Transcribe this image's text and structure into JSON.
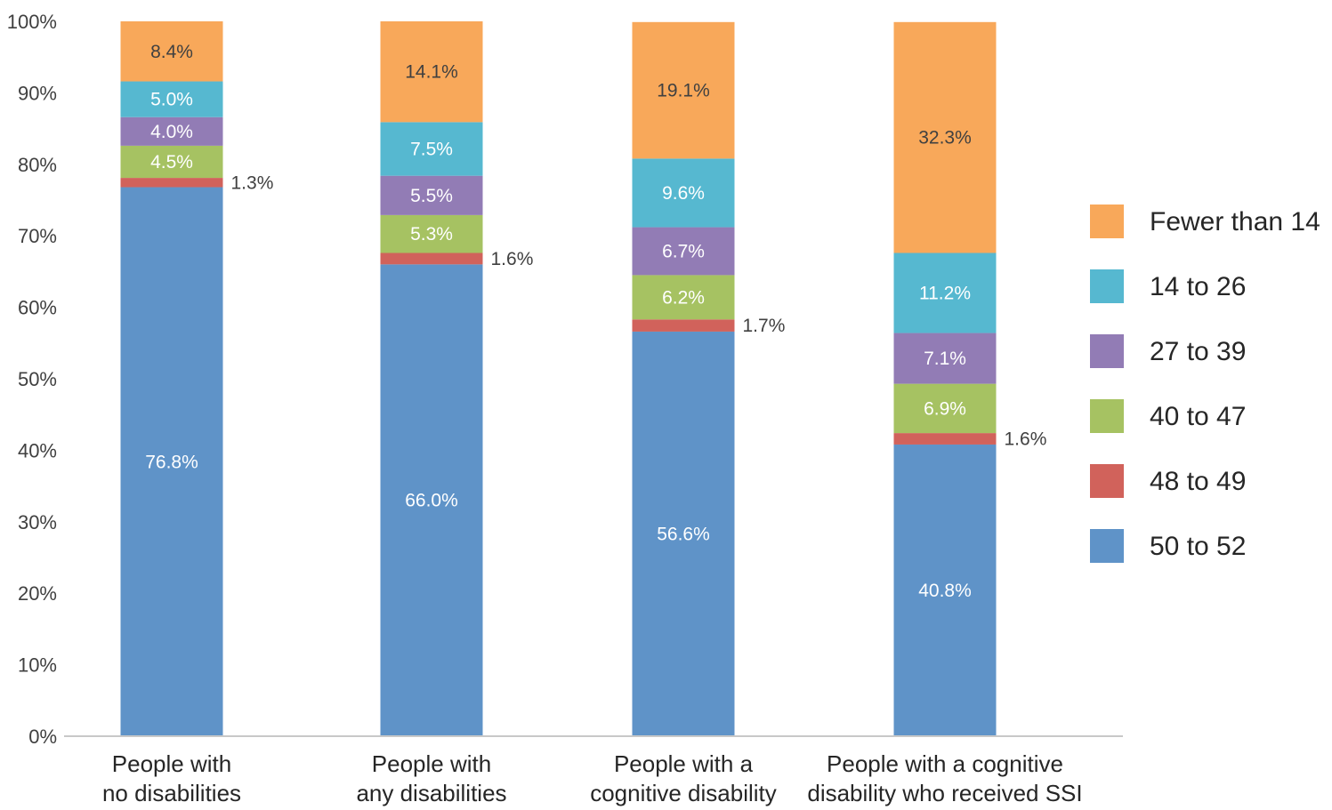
{
  "chart_data": {
    "type": "bar",
    "stacked": true,
    "title": "",
    "xlabel": "",
    "ylabel": "",
    "ylim": [
      0,
      100
    ],
    "yticks": [
      "0%",
      "10%",
      "20%",
      "30%",
      "40%",
      "50%",
      "60%",
      "70%",
      "80%",
      "90%",
      "100%"
    ],
    "categories": [
      [
        "People with",
        "no disabilities"
      ],
      [
        "People with",
        "any  disabilities"
      ],
      [
        "People with a",
        "cognitive disability"
      ],
      [
        "People with a cognitive",
        "disability who received SSI"
      ]
    ],
    "series": [
      {
        "name": "50 to 52",
        "color": "#5f93c8",
        "values": [
          76.8,
          66.0,
          56.6,
          40.8
        ],
        "labels": [
          "76.8%",
          "66.0%",
          "56.6%",
          "40.8%"
        ],
        "label_placement": "inside",
        "label_color": "#ffffff"
      },
      {
        "name": "48 to 49",
        "color": "#d1625b",
        "values": [
          1.3,
          1.6,
          1.7,
          1.6
        ],
        "labels": [
          "1.3%",
          "1.6%",
          "1.7%",
          "1.6%"
        ],
        "label_placement": "outside-right",
        "label_color": "#404040"
      },
      {
        "name": "40 to 47",
        "color": "#a6c262",
        "values": [
          4.5,
          5.3,
          6.2,
          6.9
        ],
        "labels": [
          "4.5%",
          "5.3%",
          "6.2%",
          "6.9%"
        ],
        "label_placement": "inside",
        "label_color": "#ffffff"
      },
      {
        "name": "27 to 39",
        "color": "#927cb5",
        "values": [
          4.0,
          5.5,
          6.7,
          7.1
        ],
        "labels": [
          "4.0%",
          "5.5%",
          "6.7%",
          "7.1%"
        ],
        "label_placement": "inside",
        "label_color": "#ffffff"
      },
      {
        "name": "14 to 26",
        "color": "#56b8d0",
        "values": [
          5.0,
          7.5,
          9.6,
          11.2
        ],
        "labels": [
          "5.0%",
          "7.5%",
          "9.6%",
          "11.2%"
        ],
        "label_placement": "inside",
        "label_color": "#ffffff"
      },
      {
        "name": "Fewer than 14",
        "color": "#f8a85a",
        "values": [
          8.4,
          14.1,
          19.1,
          32.3
        ],
        "labels": [
          "8.4%",
          "14.1%",
          "19.1%",
          "32.3%"
        ],
        "label_placement": "inside",
        "label_color": "#404040"
      }
    ],
    "legend": {
      "position": "right",
      "order": [
        "Fewer than 14",
        "14 to 26",
        "27 to 39",
        "40 to 47",
        "48 to 49",
        "50 to 52"
      ]
    },
    "grid": false
  }
}
